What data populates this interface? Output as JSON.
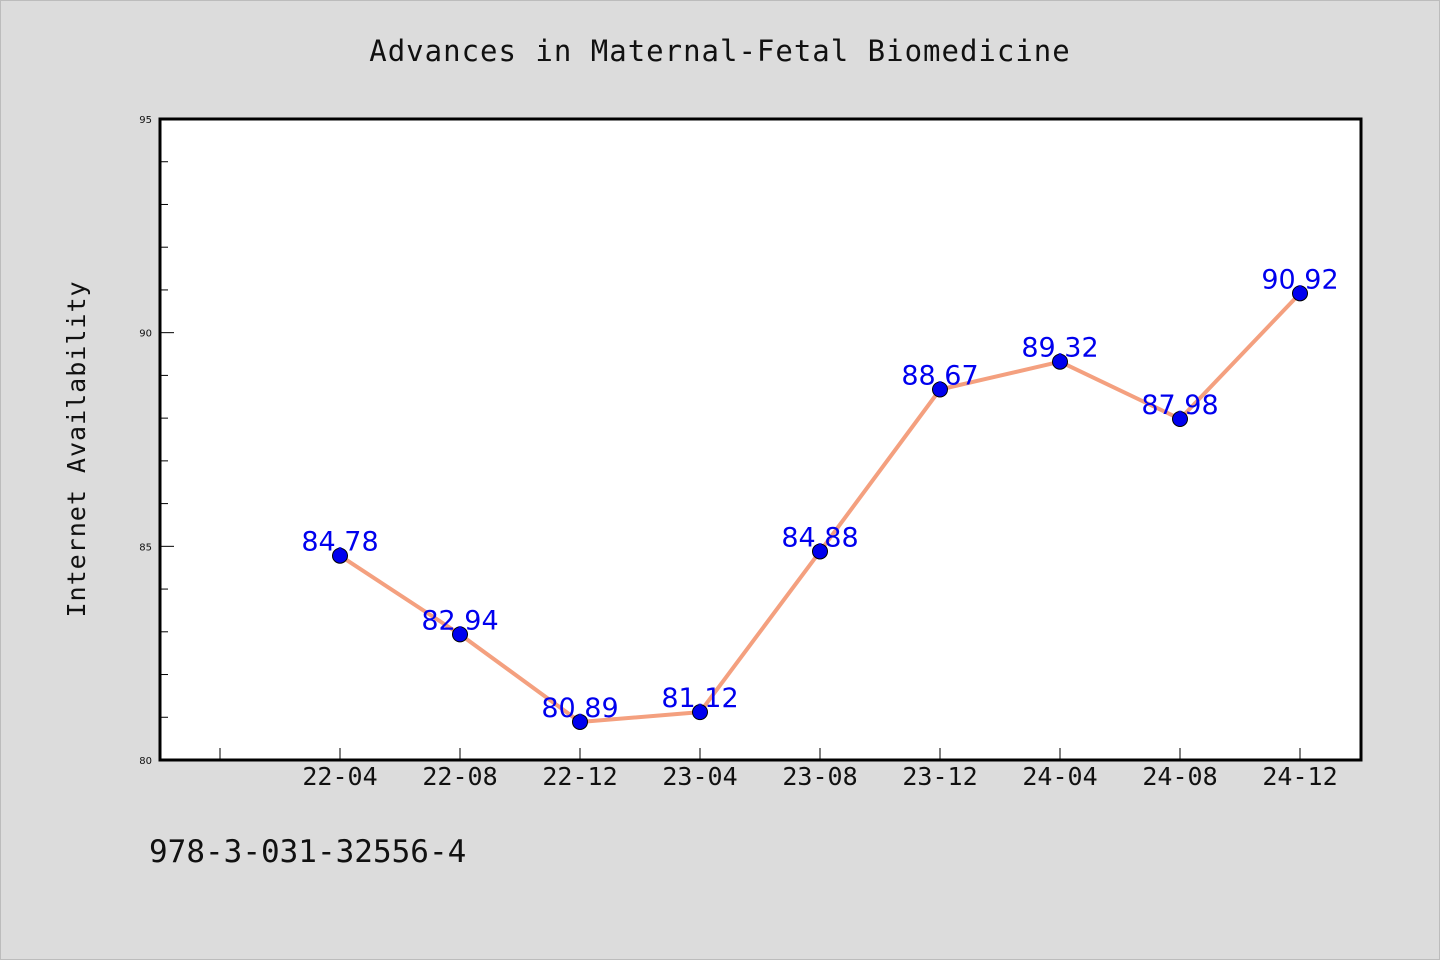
{
  "chart_data": {
    "type": "line",
    "title": "Advances in Maternal-Fetal Biomedicine",
    "xlabel": "",
    "ylabel": "Internet Availability",
    "categories": [
      "22-04",
      "22-08",
      "22-12",
      "23-04",
      "23-08",
      "23-12",
      "24-04",
      "24-08",
      "24-12"
    ],
    "values": [
      84.78,
      82.94,
      80.89,
      81.12,
      84.88,
      88.67,
      89.32,
      87.98,
      90.92
    ],
    "data_labels": [
      "84.78",
      "82.94",
      "80.89",
      "81.12",
      "84.88",
      "88.67",
      "89.32",
      "87.98",
      "90.92"
    ],
    "ylim": [
      80,
      95
    ],
    "yticks": [
      "80",
      "85",
      "90",
      "95"
    ],
    "grid": false,
    "line_color": "#f4a07f",
    "marker_color": "#0000ee",
    "label_color": "#0000ee"
  },
  "footer": {
    "isbn": "978-3-031-32556-4"
  }
}
